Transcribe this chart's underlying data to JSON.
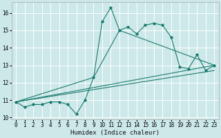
{
  "xlabel": "Humidex (Indice chaleur)",
  "bg_color": "#cce8e8",
  "grid_color": "#ffffff",
  "line_color": "#1a7a6e",
  "xlim": [
    -0.5,
    23.5
  ],
  "ylim": [
    9.9,
    16.6
  ],
  "yticks": [
    10,
    11,
    12,
    13,
    14,
    15,
    16
  ],
  "xticks": [
    0,
    1,
    2,
    3,
    4,
    5,
    6,
    7,
    8,
    9,
    10,
    11,
    12,
    13,
    14,
    15,
    16,
    17,
    18,
    19,
    20,
    21,
    22,
    23
  ],
  "series1_x": [
    0,
    1,
    2,
    3,
    4,
    5,
    6,
    7,
    8,
    9,
    10,
    11,
    12,
    13,
    14,
    15,
    16,
    17,
    18,
    19,
    20,
    21,
    22,
    23
  ],
  "series1_y": [
    10.9,
    10.6,
    10.75,
    10.75,
    10.9,
    10.9,
    10.75,
    10.2,
    11.0,
    12.3,
    15.5,
    16.3,
    15.0,
    15.2,
    14.8,
    15.3,
    15.4,
    15.3,
    14.6,
    12.9,
    12.8,
    13.6,
    12.7,
    13.0
  ],
  "series2_x": [
    0,
    23
  ],
  "series2_y": [
    10.9,
    12.7
  ],
  "series3_x": [
    0,
    23
  ],
  "series3_y": [
    10.9,
    13.0
  ],
  "series4_x": [
    0,
    9,
    12,
    23
  ],
  "series4_y": [
    10.9,
    12.3,
    15.0,
    13.0
  ],
  "xlabel_fontsize": 6.5,
  "tick_fontsize": 5.5,
  "lw": 0.8,
  "ms": 1.8
}
